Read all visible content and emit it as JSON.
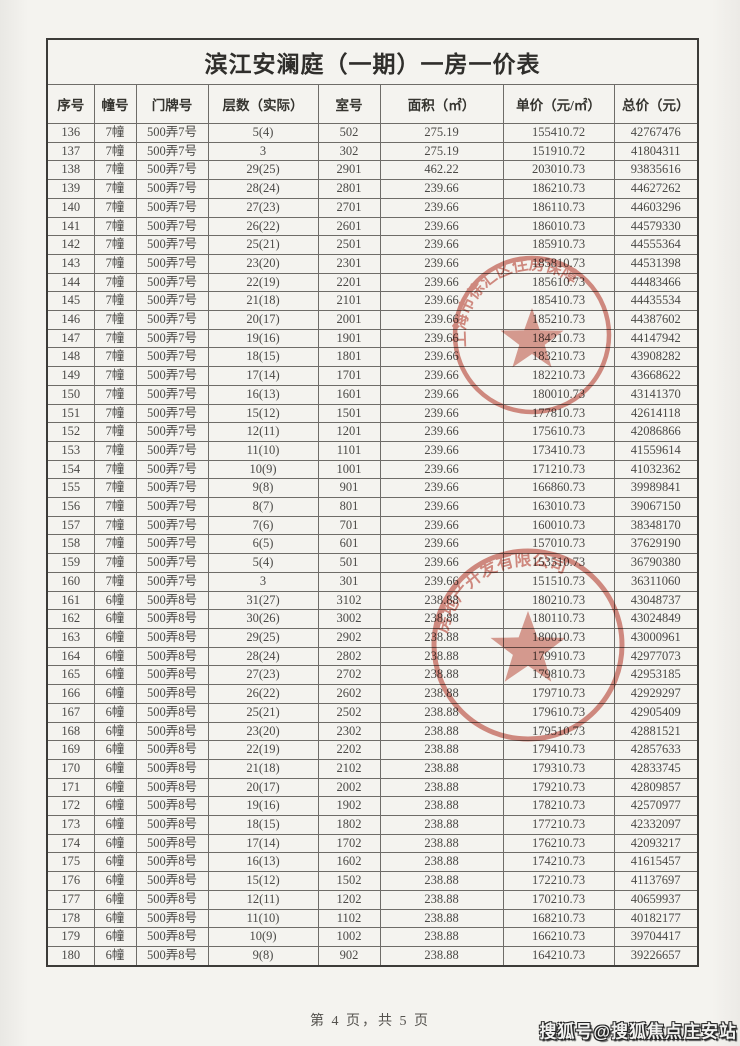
{
  "document": {
    "title": "滨江安澜庭（一期）一房一价表",
    "columns": [
      "序号",
      "幢号",
      "门牌号",
      "层数（实际）",
      "室号",
      "面积（㎡）",
      "单价（元/㎡）",
      "总价（元）"
    ],
    "rows": [
      [
        "136",
        "7幢",
        "500弄7号",
        "5(4)",
        "502",
        "275.19",
        "155410.72",
        "42767476"
      ],
      [
        "137",
        "7幢",
        "500弄7号",
        "3",
        "302",
        "275.19",
        "151910.72",
        "41804311"
      ],
      [
        "138",
        "7幢",
        "500弄7号",
        "29(25)",
        "2901",
        "462.22",
        "203010.73",
        "93835616"
      ],
      [
        "139",
        "7幢",
        "500弄7号",
        "28(24)",
        "2801",
        "239.66",
        "186210.73",
        "44627262"
      ],
      [
        "140",
        "7幢",
        "500弄7号",
        "27(23)",
        "2701",
        "239.66",
        "186110.73",
        "44603296"
      ],
      [
        "141",
        "7幢",
        "500弄7号",
        "26(22)",
        "2601",
        "239.66",
        "186010.73",
        "44579330"
      ],
      [
        "142",
        "7幢",
        "500弄7号",
        "25(21)",
        "2501",
        "239.66",
        "185910.73",
        "44555364"
      ],
      [
        "143",
        "7幢",
        "500弄7号",
        "23(20)",
        "2301",
        "239.66",
        "185810.73",
        "44531398"
      ],
      [
        "144",
        "7幢",
        "500弄7号",
        "22(19)",
        "2201",
        "239.66",
        "185610.73",
        "44483466"
      ],
      [
        "145",
        "7幢",
        "500弄7号",
        "21(18)",
        "2101",
        "239.66",
        "185410.73",
        "44435534"
      ],
      [
        "146",
        "7幢",
        "500弄7号",
        "20(17)",
        "2001",
        "239.66",
        "185210.73",
        "44387602"
      ],
      [
        "147",
        "7幢",
        "500弄7号",
        "19(16)",
        "1901",
        "239.66",
        "184210.73",
        "44147942"
      ],
      [
        "148",
        "7幢",
        "500弄7号",
        "18(15)",
        "1801",
        "239.66",
        "183210.73",
        "43908282"
      ],
      [
        "149",
        "7幢",
        "500弄7号",
        "17(14)",
        "1701",
        "239.66",
        "182210.73",
        "43668622"
      ],
      [
        "150",
        "7幢",
        "500弄7号",
        "16(13)",
        "1601",
        "239.66",
        "180010.73",
        "43141370"
      ],
      [
        "151",
        "7幢",
        "500弄7号",
        "15(12)",
        "1501",
        "239.66",
        "177810.73",
        "42614118"
      ],
      [
        "152",
        "7幢",
        "500弄7号",
        "12(11)",
        "1201",
        "239.66",
        "175610.73",
        "42086866"
      ],
      [
        "153",
        "7幢",
        "500弄7号",
        "11(10)",
        "1101",
        "239.66",
        "173410.73",
        "41559614"
      ],
      [
        "154",
        "7幢",
        "500弄7号",
        "10(9)",
        "1001",
        "239.66",
        "171210.73",
        "41032362"
      ],
      [
        "155",
        "7幢",
        "500弄7号",
        "9(8)",
        "901",
        "239.66",
        "166860.73",
        "39989841"
      ],
      [
        "156",
        "7幢",
        "500弄7号",
        "8(7)",
        "801",
        "239.66",
        "163010.73",
        "39067150"
      ],
      [
        "157",
        "7幢",
        "500弄7号",
        "7(6)",
        "701",
        "239.66",
        "160010.73",
        "38348170"
      ],
      [
        "158",
        "7幢",
        "500弄7号",
        "6(5)",
        "601",
        "239.66",
        "157010.73",
        "37629190"
      ],
      [
        "159",
        "7幢",
        "500弄7号",
        "5(4)",
        "501",
        "239.66",
        "153510.73",
        "36790380"
      ],
      [
        "160",
        "7幢",
        "500弄7号",
        "3",
        "301",
        "239.66",
        "151510.73",
        "36311060"
      ],
      [
        "161",
        "6幢",
        "500弄8号",
        "31(27)",
        "3102",
        "238.88",
        "180210.73",
        "43048737"
      ],
      [
        "162",
        "6幢",
        "500弄8号",
        "30(26)",
        "3002",
        "238.88",
        "180110.73",
        "43024849"
      ],
      [
        "163",
        "6幢",
        "500弄8号",
        "29(25)",
        "2902",
        "238.88",
        "180010.73",
        "43000961"
      ],
      [
        "164",
        "6幢",
        "500弄8号",
        "28(24)",
        "2802",
        "238.88",
        "179910.73",
        "42977073"
      ],
      [
        "165",
        "6幢",
        "500弄8号",
        "27(23)",
        "2702",
        "238.88",
        "179810.73",
        "42953185"
      ],
      [
        "166",
        "6幢",
        "500弄8号",
        "26(22)",
        "2602",
        "238.88",
        "179710.73",
        "42929297"
      ],
      [
        "167",
        "6幢",
        "500弄8号",
        "25(21)",
        "2502",
        "238.88",
        "179610.73",
        "42905409"
      ],
      [
        "168",
        "6幢",
        "500弄8号",
        "23(20)",
        "2302",
        "238.88",
        "179510.73",
        "42881521"
      ],
      [
        "169",
        "6幢",
        "500弄8号",
        "22(19)",
        "2202",
        "238.88",
        "179410.73",
        "42857633"
      ],
      [
        "170",
        "6幢",
        "500弄8号",
        "21(18)",
        "2102",
        "238.88",
        "179310.73",
        "42833745"
      ],
      [
        "171",
        "6幢",
        "500弄8号",
        "20(17)",
        "2002",
        "238.88",
        "179210.73",
        "42809857"
      ],
      [
        "172",
        "6幢",
        "500弄8号",
        "19(16)",
        "1902",
        "238.88",
        "178210.73",
        "42570977"
      ],
      [
        "173",
        "6幢",
        "500弄8号",
        "18(15)",
        "1802",
        "238.88",
        "177210.73",
        "42332097"
      ],
      [
        "174",
        "6幢",
        "500弄8号",
        "17(14)",
        "1702",
        "238.88",
        "176210.73",
        "42093217"
      ],
      [
        "175",
        "6幢",
        "500弄8号",
        "16(13)",
        "1602",
        "238.88",
        "174210.73",
        "41615457"
      ],
      [
        "176",
        "6幢",
        "500弄8号",
        "15(12)",
        "1502",
        "238.88",
        "172210.73",
        "41137697"
      ],
      [
        "177",
        "6幢",
        "500弄8号",
        "12(11)",
        "1202",
        "238.88",
        "170210.73",
        "40659937"
      ],
      [
        "178",
        "6幢",
        "500弄8号",
        "11(10)",
        "1102",
        "238.88",
        "168210.73",
        "40182177"
      ],
      [
        "179",
        "6幢",
        "500弄8号",
        "10(9)",
        "1002",
        "238.88",
        "166210.73",
        "39704417"
      ],
      [
        "180",
        "6幢",
        "500弄8号",
        "9(8)",
        "902",
        "238.88",
        "164210.73",
        "39226657"
      ]
    ],
    "footer_page_text": "第 4 页，共 5 页"
  },
  "stamps": {
    "color": "#c65a4c",
    "upper_arc_text": "上海市徐汇区住房保障",
    "lower_arc_text": "房地产开发有限公司"
  },
  "watermark": {
    "text": "搜狐号@搜狐焦点庄安站"
  }
}
